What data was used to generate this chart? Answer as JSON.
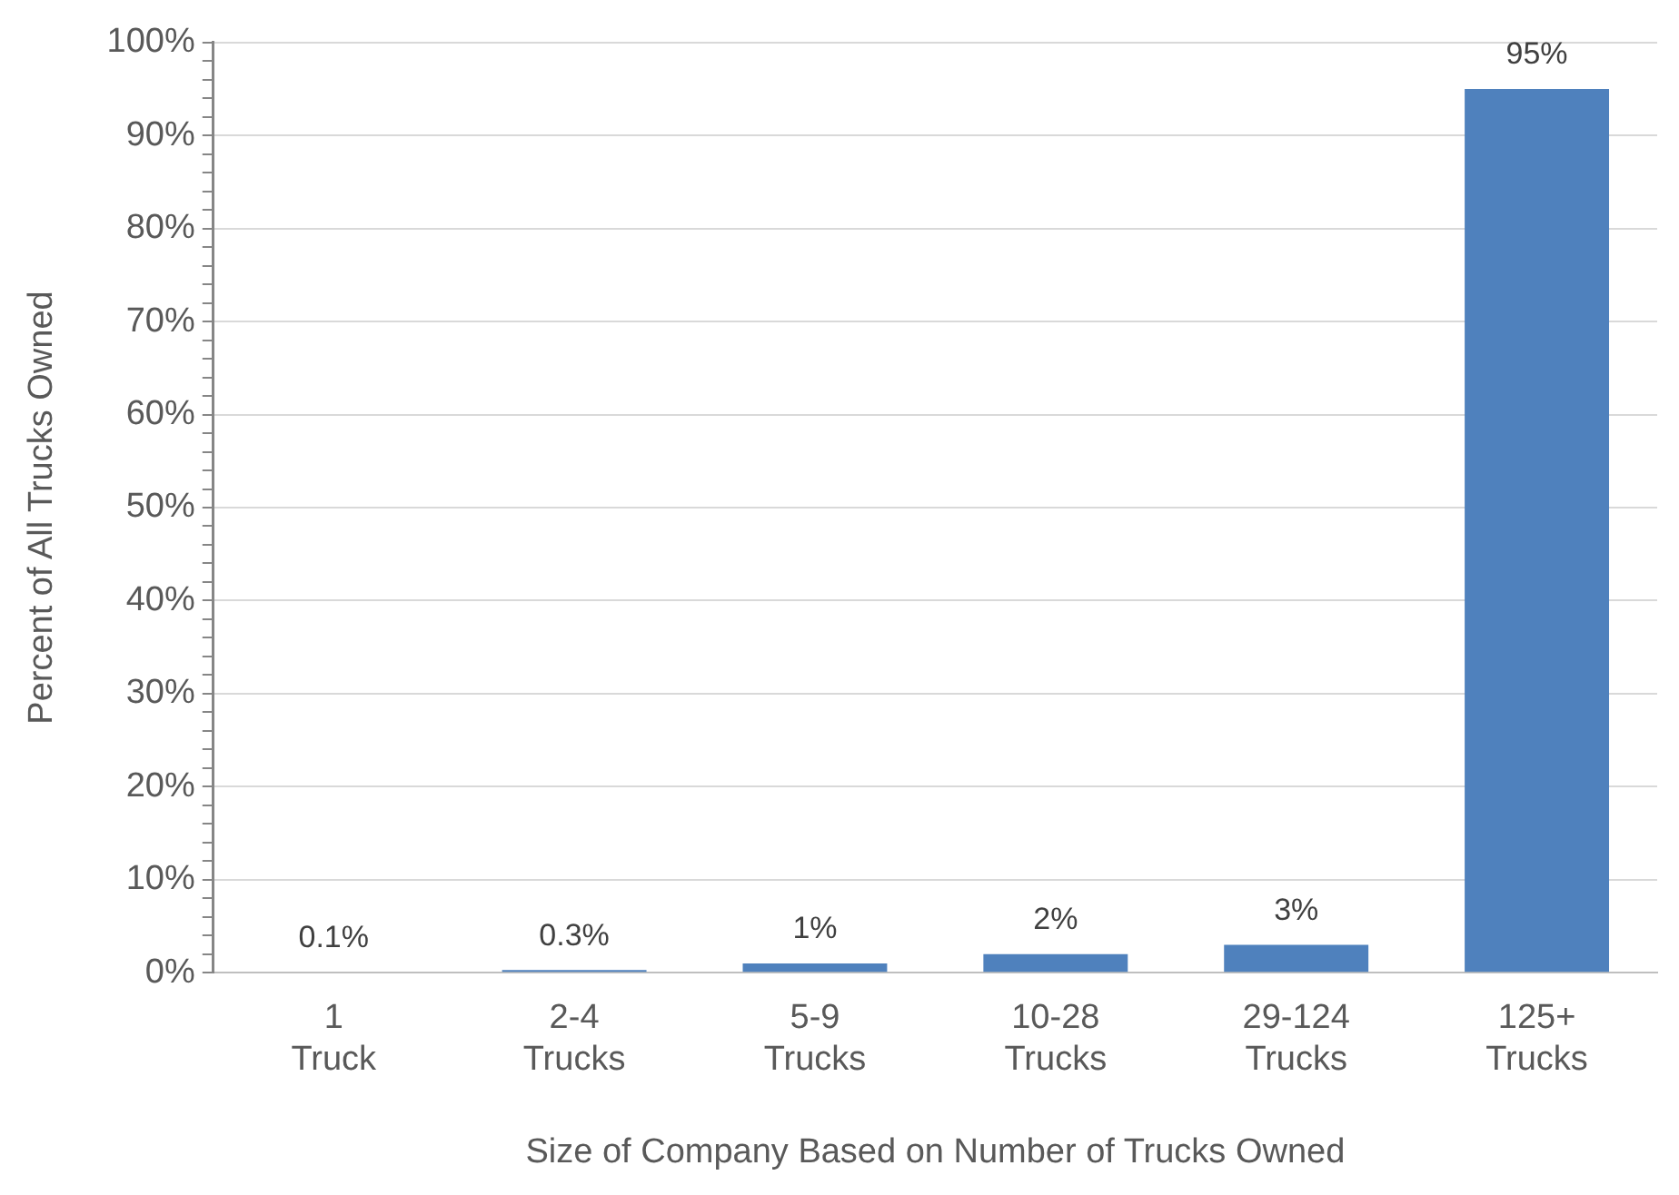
{
  "chart_data": {
    "type": "bar",
    "xlabel": "Size of Company Based on Number of Trucks Owned",
    "ylabel": "Percent of All Trucks Owned",
    "categories": [
      "1 Truck",
      "2-4 Trucks",
      "5-9 Trucks",
      "10-28 Trucks",
      "29-124 Trucks",
      "125+ Trucks"
    ],
    "values": [
      0.1,
      0.3,
      1,
      2,
      3,
      95
    ],
    "color": "#4f81bd",
    "value_labels": [
      "0.1%",
      "0.3%",
      "1%",
      "2%",
      "3%",
      "95%"
    ],
    "ylim": [
      0,
      100
    ],
    "yticks": [
      {
        "value": 0,
        "label": "0%"
      },
      {
        "value": 2,
        "label": null
      },
      {
        "value": 4,
        "label": null
      },
      {
        "value": 6,
        "label": null
      },
      {
        "value": 8,
        "label": null
      },
      {
        "value": 10,
        "label": "10%"
      },
      {
        "value": 12,
        "label": null
      },
      {
        "value": 14,
        "label": null
      },
      {
        "value": 16,
        "label": null
      },
      {
        "value": 18,
        "label": null
      },
      {
        "value": 20,
        "label": "20%"
      },
      {
        "value": 22,
        "label": null
      },
      {
        "value": 24,
        "label": null
      },
      {
        "value": 26,
        "label": null
      },
      {
        "value": 28,
        "label": null
      },
      {
        "value": 30,
        "label": "30%"
      },
      {
        "value": 32,
        "label": null
      },
      {
        "value": 34,
        "label": null
      },
      {
        "value": 36,
        "label": null
      },
      {
        "value": 38,
        "label": null
      },
      {
        "value": 40,
        "label": "40%"
      },
      {
        "value": 42,
        "label": null
      },
      {
        "value": 44,
        "label": null
      },
      {
        "value": 46,
        "label": null
      },
      {
        "value": 48,
        "label": null
      },
      {
        "value": 50,
        "label": "50%"
      },
      {
        "value": 52,
        "label": null
      },
      {
        "value": 54,
        "label": null
      },
      {
        "value": 56,
        "label": null
      },
      {
        "value": 58,
        "label": null
      },
      {
        "value": 60,
        "label": "60%"
      },
      {
        "value": 62,
        "label": null
      },
      {
        "value": 64,
        "label": null
      },
      {
        "value": 66,
        "label": null
      },
      {
        "value": 68,
        "label": null
      },
      {
        "value": 70,
        "label": "70%"
      },
      {
        "value": 72,
        "label": null
      },
      {
        "value": 74,
        "label": null
      },
      {
        "value": 76,
        "label": null
      },
      {
        "value": 78,
        "label": null
      },
      {
        "value": 80,
        "label": "80%"
      },
      {
        "value": 82,
        "label": null
      },
      {
        "value": 84,
        "label": null
      },
      {
        "value": 86,
        "label": null
      },
      {
        "value": 88,
        "label": null
      },
      {
        "value": 90,
        "label": "90%"
      },
      {
        "value": 92,
        "label": null
      },
      {
        "value": 94,
        "label": null
      },
      {
        "value": 96,
        "label": null
      },
      {
        "value": 98,
        "label": null
      },
      {
        "value": 100,
        "label": "100%"
      }
    ],
    "grid": "y",
    "legend": false
  }
}
